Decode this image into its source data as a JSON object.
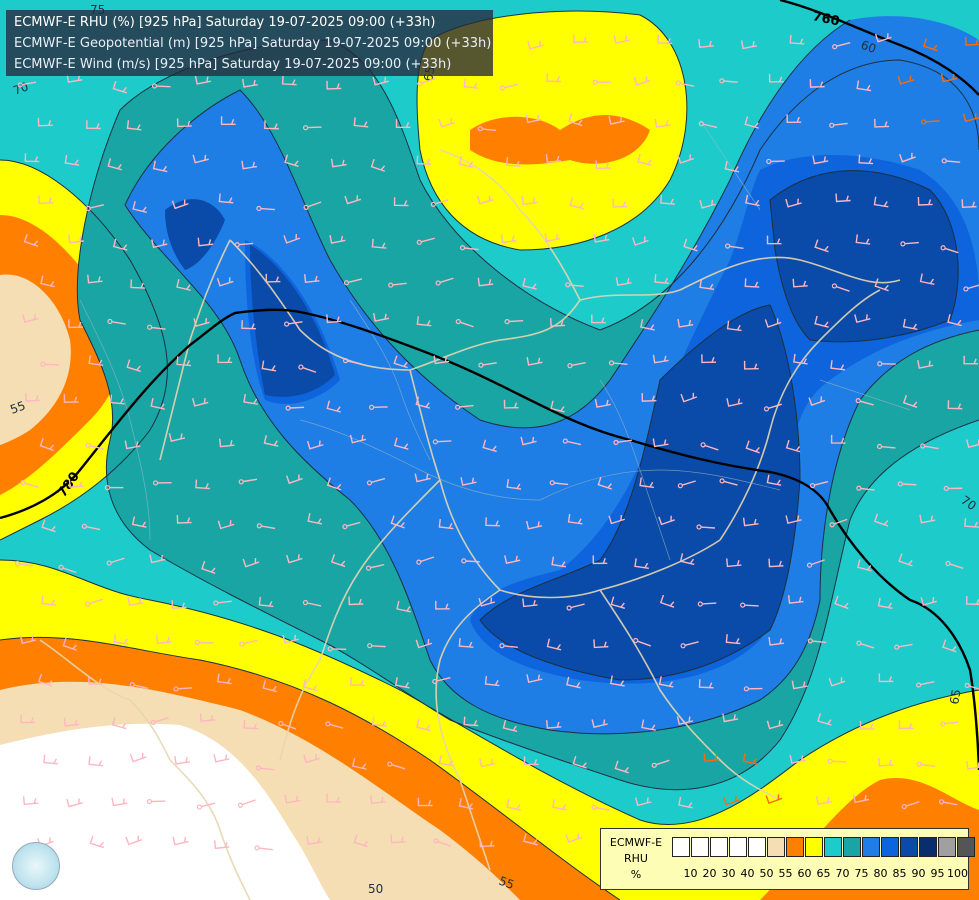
{
  "header": {
    "line1": "ECMWF-E RHU (%) [925 hPa] Saturday 19-07-2025 09:00 (+33h)",
    "line2": "ECMWF-E Geopotential (m) [925 hPa] Saturday 19-07-2025 09:00 (+33h)",
    "line3": "ECMWF-E Wind (m/s) [925 hPa] Saturday 19-07-2025 09:00 (+33h)"
  },
  "legend": {
    "title_line1": "ECMWF-E",
    "title_line2": "RHU",
    "title_line3": "%",
    "ticks": [
      "10",
      "20",
      "30",
      "40",
      "50",
      "55",
      "60",
      "65",
      "70",
      "75",
      "80",
      "85",
      "90",
      "95",
      "100"
    ],
    "colors": [
      "#ffffff",
      "#ffffff",
      "#ffffff",
      "#ffffff",
      "#ffffff",
      "#f5deb3",
      "#ff8000",
      "#ffff00",
      "#1ecbcb",
      "#1aa5a5",
      "#1e7ee6",
      "#0e64dc",
      "#0a4aa8",
      "#0a2d6e",
      "#a0a0a0",
      "#555555"
    ]
  },
  "contour_labels": {
    "geopotential_760": "760",
    "geopotential_780": "780",
    "rhu_75": "75",
    "rhu_70_left": "70",
    "rhu_65_top": "65",
    "rhu_60": "60",
    "rhu_55_left": "55",
    "rhu_70_right": "70",
    "rhu_65_right": "65",
    "rhu_50": "50",
    "rhu_55_bottom": "55"
  },
  "palette": {
    "white": "#ffffff",
    "tan": "#f5deb3",
    "orange": "#ff8000",
    "yellow": "#ffff00",
    "cyan": "#1ecbcb",
    "teal": "#1aa5a5",
    "blue": "#1e7ee6",
    "blue_dark": "#0e64dc",
    "navy": "#0a4aa8",
    "barb_pink": "#ffb6c1",
    "barb_orange": "#ff6a00",
    "border_line": "#e6d6b0"
  }
}
